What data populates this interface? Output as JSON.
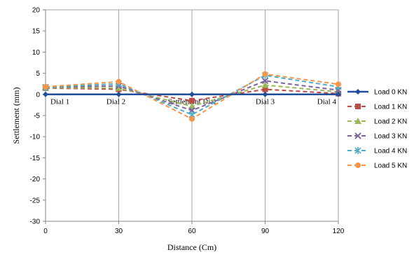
{
  "chart_data": {
    "type": "line",
    "title": "",
    "xlabel": "Distance  (Cm)",
    "ylabel": "Settlement  (mm)",
    "x": [
      0,
      30,
      60,
      90,
      120
    ],
    "xticks": [
      "0",
      "30",
      "60",
      "90",
      "120"
    ],
    "xlim": [
      0,
      120
    ],
    "ylim": [
      -30,
      20
    ],
    "yticks": [
      20,
      15,
      10,
      5,
      0,
      -5,
      -10,
      -15,
      -20,
      -25,
      -30
    ],
    "grid": "vertical",
    "legend_position": "right",
    "annotations": [
      {
        "text": "Dial 1",
        "x": 0,
        "y": -1.8
      },
      {
        "text": "Dial 2",
        "x": 30,
        "y": -1.8
      },
      {
        "text": "Settlement Dial",
        "x": 60,
        "y": -1.8
      },
      {
        "text": "Dial 3",
        "x": 90,
        "y": -1.8
      },
      {
        "text": "Dial 4",
        "x": 120,
        "y": -1.8
      }
    ],
    "series": [
      {
        "name": "Load  0 KN",
        "values": [
          0,
          0,
          0,
          0,
          0
        ],
        "color": "#1f4e9a",
        "dash": "solid",
        "marker": "diamond"
      },
      {
        "name": "Load 1 KN",
        "values": [
          1.5,
          1.2,
          -1.5,
          1.2,
          0.2
        ],
        "color": "#be4b48",
        "dash": "dashed",
        "marker": "square"
      },
      {
        "name": "Load 2 KN",
        "values": [
          1.6,
          1.5,
          -2.8,
          2.2,
          0.6
        ],
        "color": "#98b954",
        "dash": "dashed",
        "marker": "triangle"
      },
      {
        "name": "Load 3 KN",
        "values": [
          1.7,
          2.0,
          -3.8,
          3.2,
          1.0
        ],
        "color": "#7e62a1",
        "dash": "dashed",
        "marker": "x"
      },
      {
        "name": "Load 4 KN",
        "values": [
          1.7,
          2.5,
          -4.8,
          4.5,
          1.8
        ],
        "color": "#4bacc6",
        "dash": "dashed",
        "marker": "asterisk"
      },
      {
        "name": "Load 5 KN",
        "values": [
          1.8,
          3.0,
          -5.8,
          4.8,
          2.4
        ],
        "color": "#f79646",
        "dash": "dashed",
        "marker": "circle"
      }
    ]
  }
}
